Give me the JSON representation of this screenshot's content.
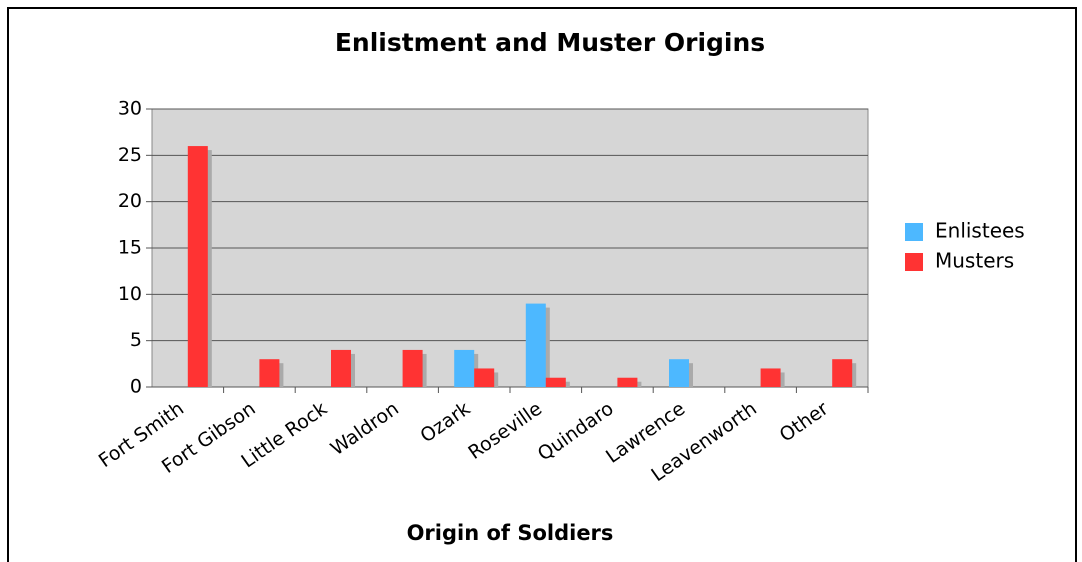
{
  "chart_data": {
    "type": "bar",
    "title": "Enlistment and Muster Origins",
    "x_label": "Origin of Soldiers",
    "categories": [
      "Fort Smith",
      "Fort Gibson",
      "Little Rock",
      "Waldron",
      "Ozark",
      "Roseville",
      "Quindaro",
      "Lawrence",
      "Leavenworth",
      "Other"
    ],
    "series": [
      {
        "name": "Enlistees",
        "color": "#4db8ff",
        "values": [
          0,
          0,
          0,
          0,
          4,
          9,
          0,
          3,
          0,
          0
        ]
      },
      {
        "name": "Musters",
        "color": "#ff3333",
        "values": [
          26,
          3,
          4,
          4,
          2,
          1,
          1,
          0,
          2,
          3
        ]
      }
    ],
    "ylim": [
      0,
      30
    ],
    "yticks": [
      0,
      5,
      10,
      15,
      20,
      25,
      30
    ],
    "grid": true,
    "legend": "right"
  }
}
